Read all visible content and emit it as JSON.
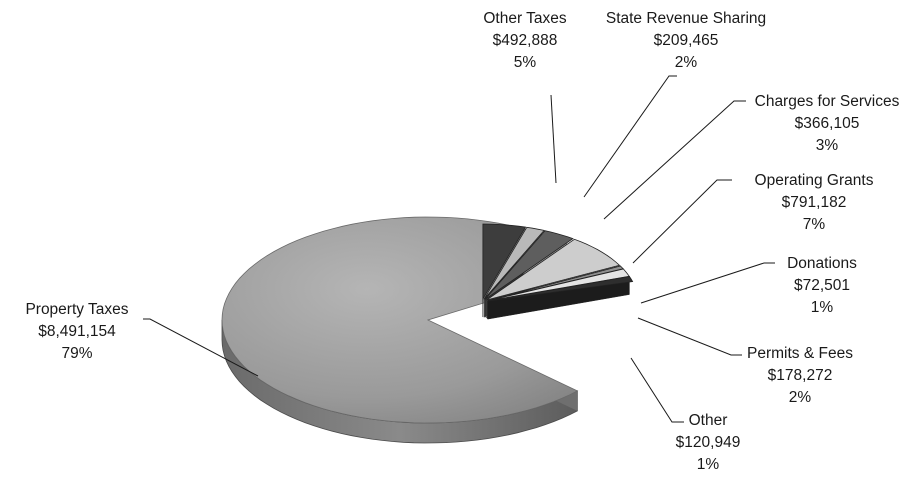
{
  "chart_data": {
    "type": "pie",
    "title": "",
    "categories": [
      "Property Taxes",
      "Other Taxes",
      "State Revenue Sharing",
      "Charges for Services",
      "Operating Grants",
      "Donations",
      "Permits & Fees",
      "Other"
    ],
    "values": [
      8491154,
      492888,
      209465,
      366105,
      791182,
      72501,
      178272,
      120949
    ],
    "value_labels": [
      "$8,491,154",
      "$492,888",
      "$209,465",
      "$366,105",
      "$791,182",
      "$72,501",
      "$178,272",
      "$120,949"
    ],
    "percent_labels": [
      "79%",
      "5%",
      "2%",
      "3%",
      "7%",
      "1%",
      "2%",
      "1%"
    ],
    "style": "3d-exploded",
    "legend": "none",
    "colors": [
      "#a3a3a3",
      "#3d3d3d",
      "#b9b9b9",
      "#5e5e5e",
      "#cdcdcd",
      "#8f8f8f",
      "#e4e4e4",
      "#2e2e2e"
    ]
  }
}
